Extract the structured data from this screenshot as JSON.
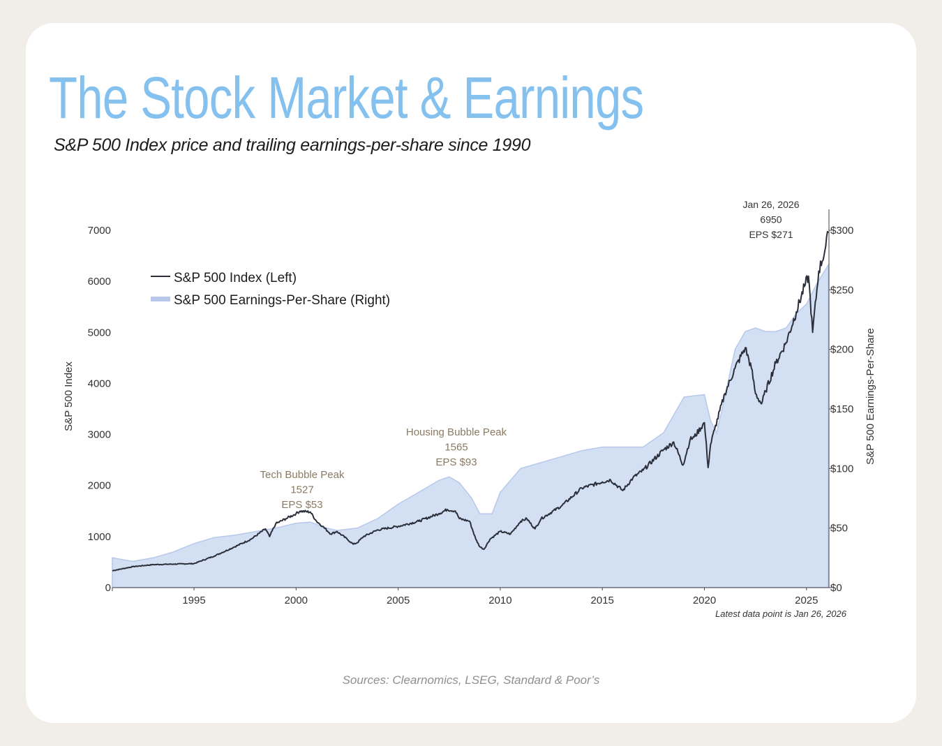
{
  "page": {
    "title": "The Stock Market & Earnings",
    "subtitle": "S&P 500 Index price and trailing earnings-per-share since 1990",
    "latest_note": "Latest data point is Jan 26, 2026",
    "sources": "Sources: Clearnomics, LSEG, Standard & Poor’s"
  },
  "colors": {
    "background": "#f1eee9",
    "card": "#ffffff",
    "title": "#85c1ee",
    "index_line": "#2b2f3a",
    "eps_fill": "#d3dff3",
    "eps_edge": "#b7c8ea",
    "annotation": "#8a7a62"
  },
  "chart_data": {
    "type": "line",
    "ylabel": "S&P 500 Index",
    "ylabel_right": "S&P 500 Earnings-Per-Share",
    "xlim": [
      1991.0,
      2026.1
    ],
    "ylim": [
      0,
      7000
    ],
    "ylim_right": [
      0,
      300
    ],
    "x_ticks": [
      "1995",
      "2000",
      "2005",
      "2010",
      "2015",
      "2020",
      "2025"
    ],
    "y_ticks": [
      "0",
      "1000",
      "2000",
      "3000",
      "4000",
      "5000",
      "6000",
      "7000"
    ],
    "y_ticks_right": [
      "$0",
      "$50",
      "$100",
      "$150",
      "$200",
      "$250",
      "$300"
    ],
    "legend_position": "top-left",
    "grid": false,
    "series": [
      {
        "name": "S&P 500 Index (Left)",
        "axis": "left",
        "style": "line",
        "x": [
          1991.0,
          1992.0,
          1993.0,
          1994.0,
          1995.0,
          1996.0,
          1997.0,
          1997.8,
          1998.5,
          1998.7,
          1999.0,
          1999.5,
          2000.0,
          2000.2,
          2000.7,
          2001.0,
          2001.3,
          2001.7,
          2002.0,
          2002.5,
          2002.8,
          2003.0,
          2003.3,
          2004.0,
          2005.0,
          2006.0,
          2007.0,
          2007.4,
          2007.8,
          2008.0,
          2008.5,
          2008.8,
          2009.0,
          2009.2,
          2009.5,
          2010.0,
          2010.5,
          2011.0,
          2011.3,
          2011.7,
          2012.0,
          2013.0,
          2014.0,
          2015.0,
          2015.4,
          2016.0,
          2016.5,
          2017.0,
          2018.0,
          2018.5,
          2018.95,
          2019.3,
          2019.5,
          2020.0,
          2020.18,
          2020.3,
          2020.5,
          2021.0,
          2021.5,
          2022.0,
          2022.3,
          2022.5,
          2022.8,
          2023.0,
          2023.5,
          2024.0,
          2024.5,
          2024.9,
          2025.1,
          2025.3,
          2025.6,
          2025.9,
          2026.07
        ],
        "y": [
          330,
          410,
          450,
          460,
          470,
          620,
          800,
          950,
          1150,
          1000,
          1250,
          1350,
          1450,
          1500,
          1480,
          1300,
          1200,
          1050,
          1100,
          950,
          850,
          880,
          1000,
          1130,
          1200,
          1300,
          1450,
          1530,
          1500,
          1350,
          1300,
          950,
          800,
          750,
          950,
          1100,
          1050,
          1300,
          1350,
          1150,
          1350,
          1600,
          1950,
          2070,
          2110,
          1900,
          2150,
          2300,
          2700,
          2850,
          2400,
          2900,
          2950,
          3230,
          2350,
          2800,
          3100,
          3800,
          4300,
          4700,
          4300,
          3800,
          3600,
          3850,
          4400,
          4800,
          5400,
          5900,
          6100,
          5000,
          6200,
          6600,
          6950
        ]
      },
      {
        "name": "S&P 500 Earnings-Per-Share (Right)",
        "axis": "right",
        "style": "area",
        "x": [
          1991.0,
          1992.0,
          1993.0,
          1994.0,
          1995.0,
          1996.0,
          1997.0,
          1998.0,
          1999.0,
          2000.0,
          2000.7,
          2001.5,
          2002.0,
          2003.0,
          2004.0,
          2005.0,
          2006.0,
          2007.0,
          2007.5,
          2008.0,
          2008.6,
          2009.0,
          2009.6,
          2010.0,
          2011.0,
          2012.0,
          2013.0,
          2014.0,
          2015.0,
          2016.0,
          2017.0,
          2018.0,
          2018.5,
          2019.0,
          2020.0,
          2020.3,
          2020.6,
          2021.0,
          2021.5,
          2022.0,
          2022.5,
          2023.0,
          2023.5,
          2024.0,
          2024.5,
          2025.0,
          2025.5,
          2026.07
        ],
        "y": [
          25,
          22,
          25,
          30,
          37,
          42,
          44,
          47,
          50,
          54,
          55,
          50,
          48,
          50,
          58,
          70,
          80,
          90,
          93,
          88,
          75,
          62,
          62,
          80,
          100,
          105,
          110,
          115,
          118,
          118,
          118,
          130,
          145,
          160,
          162,
          140,
          130,
          160,
          200,
          215,
          218,
          215,
          215,
          218,
          230,
          238,
          255,
          271
        ]
      }
    ],
    "annotations": [
      {
        "lines": [
          "Tech Bubble Peak",
          "1527",
          "EPS $53"
        ],
        "x": 2000.2,
        "y": 1527
      },
      {
        "lines": [
          "Housing Bubble Peak",
          "1565",
          "EPS $93"
        ],
        "x": 2007.8,
        "y": 1565
      },
      {
        "lines": [
          "Jan 26, 2026",
          "6950",
          "EPS $271"
        ],
        "x": 2026.07,
        "y": 6950
      }
    ]
  }
}
